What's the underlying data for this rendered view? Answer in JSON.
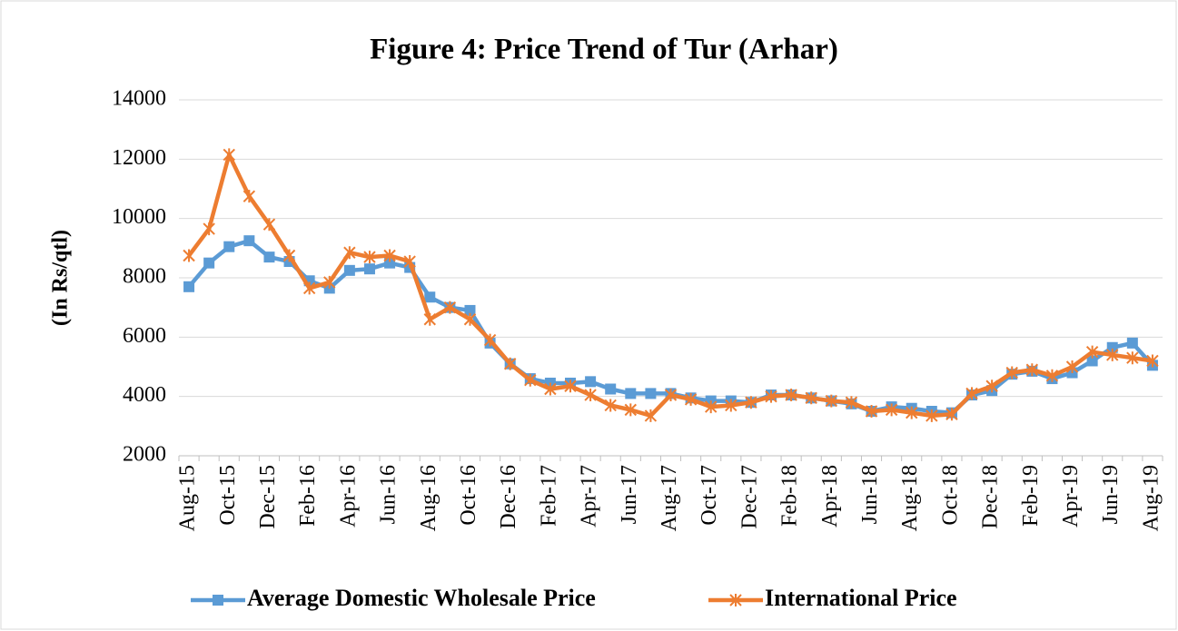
{
  "chart_data": {
    "type": "line",
    "title": "Figure 4: Price Trend of Tur (Arhar)",
    "y_label": "(In Rs/qtl)",
    "categories": [
      "Aug-15",
      null,
      "Oct-15",
      null,
      "Dec-15",
      null,
      "Feb-16",
      null,
      "Apr-16",
      null,
      "Jun-16",
      null,
      "Aug-16",
      null,
      "Oct-16",
      null,
      "Dec-16",
      null,
      "Feb-17",
      null,
      "Apr-17",
      null,
      "Jun-17",
      null,
      "Aug-17",
      null,
      "Oct-17",
      null,
      "Dec-17",
      null,
      "Feb-18",
      null,
      "Apr-18",
      null,
      "Jun-18",
      null,
      "Aug-18",
      null,
      "Oct-18",
      null,
      "Dec-18",
      null,
      "Feb-19",
      null,
      "Apr-19",
      null,
      "Jun-19",
      null,
      "Aug-19"
    ],
    "series": [
      {
        "name": "Average Domestic Wholesale Price",
        "color": "#5b9bd5",
        "marker": "square",
        "values": [
          7700,
          8500,
          9050,
          9250,
          8700,
          8550,
          7900,
          7650,
          8250,
          8300,
          8500,
          8350,
          7350,
          7000,
          6900,
          5800,
          5100,
          4600,
          4450,
          4450,
          4500,
          4250,
          4100,
          4100,
          4100,
          3950,
          3850,
          3850,
          3800,
          4050,
          4050,
          3950,
          3850,
          3750,
          3500,
          3650,
          3600,
          3500,
          3450,
          4050,
          4200,
          4750,
          4850,
          4600,
          4800,
          5200,
          5650,
          5800,
          5050
        ]
      },
      {
        "name": "International Price",
        "color": "#ed7d31",
        "marker": "asterisk",
        "values": [
          8750,
          9650,
          12150,
          10750,
          9800,
          8750,
          7650,
          7850,
          8850,
          8700,
          8750,
          8550,
          6600,
          7000,
          6600,
          5900,
          5100,
          4550,
          4250,
          4350,
          4050,
          3700,
          3550,
          3350,
          4050,
          3900,
          3650,
          3700,
          3800,
          4000,
          4050,
          3950,
          3850,
          3800,
          3500,
          3550,
          3450,
          3350,
          3400,
          4100,
          4350,
          4800,
          4900,
          4700,
          5000,
          5500,
          5400,
          5300,
          5200
        ]
      }
    ],
    "ylim": [
      2000,
      14000
    ],
    "yticks": [
      2000,
      4000,
      6000,
      8000,
      10000,
      12000,
      14000
    ],
    "grid": true,
    "legend": "bottom"
  }
}
